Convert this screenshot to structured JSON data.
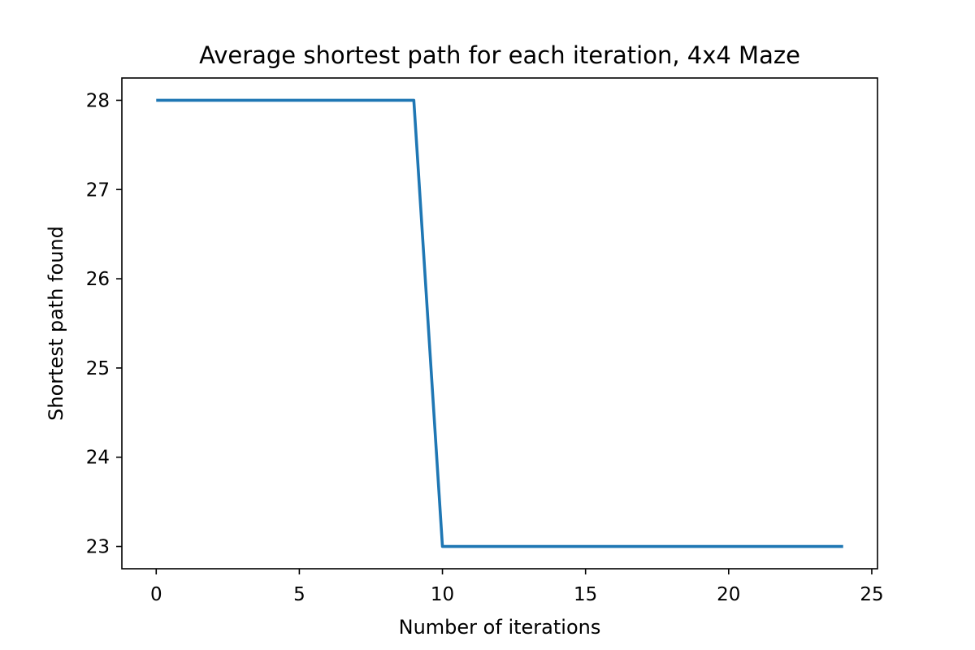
{
  "chart_data": {
    "type": "line",
    "title": "Average shortest path for each iteration, 4x4 Maze",
    "xlabel": "Number of iterations",
    "ylabel": "Shortest path found",
    "xlim": [
      -1.2,
      25.2
    ],
    "ylim": [
      22.75,
      28.25
    ],
    "xticks": [
      0,
      5,
      10,
      15,
      20,
      25
    ],
    "yticks": [
      23,
      24,
      25,
      26,
      27,
      28
    ],
    "grid": false,
    "series": [
      {
        "color": "#1f77b4",
        "x": [
          0,
          1,
          2,
          3,
          4,
          5,
          6,
          7,
          8,
          9,
          10,
          11,
          12,
          13,
          14,
          15,
          16,
          17,
          18,
          19,
          20,
          21,
          22,
          23,
          24
        ],
        "y": [
          28,
          28,
          28,
          28,
          28,
          28,
          28,
          28,
          28,
          28,
          23,
          23,
          23,
          23,
          23,
          23,
          23,
          23,
          23,
          23,
          23,
          23,
          23,
          23,
          23
        ]
      }
    ]
  }
}
